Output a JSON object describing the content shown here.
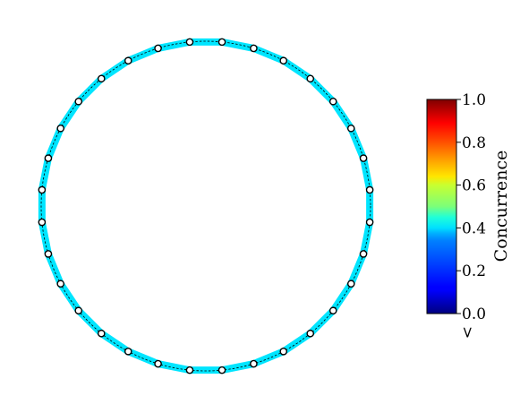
{
  "diagram": {
    "type": "ring-graph",
    "node_count": 32,
    "edge_concurrence": 0.35,
    "node_stroke_color": "#000000",
    "node_fill_color": "#ffffff",
    "guide_circle_color": "#000000"
  },
  "colorbar": {
    "label": "Concurrence",
    "colormap": "jet",
    "min": 0.0,
    "max": 1.0,
    "ticks": [
      "0.0",
      "0.2",
      "0.4",
      "0.6",
      "0.8",
      "1.0"
    ],
    "tick_values": [
      0.0,
      0.2,
      0.4,
      0.6,
      0.8,
      1.0
    ],
    "extend_marker": ">"
  }
}
